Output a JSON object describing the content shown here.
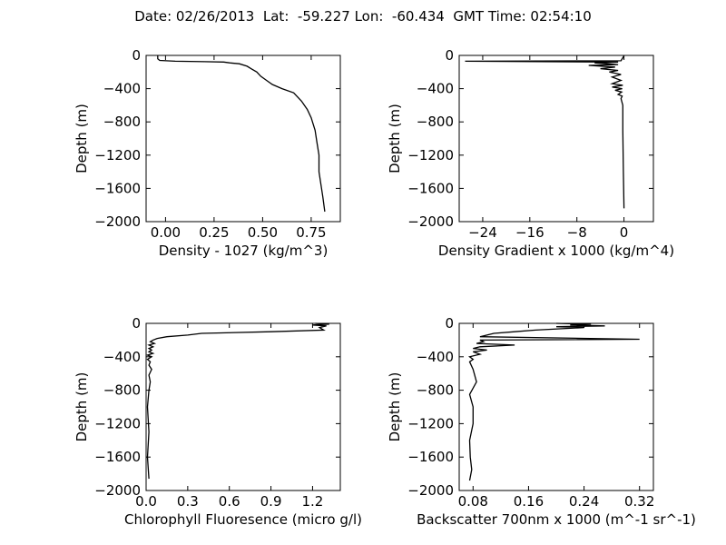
{
  "figure": {
    "suptitle": "Date: 02/26/2013  Lat:  -59.227 Lon:  -60.434  GMT Time: 02:54:10"
  },
  "chart_data": [
    {
      "type": "line",
      "xlabel": "Density - 1027 (kg/m^3)",
      "ylabel": "Depth (m)",
      "xlim": [
        -0.1,
        0.9
      ],
      "ylim": [
        -2000,
        0
      ],
      "xticks": [
        0.0,
        0.25,
        0.5,
        0.75
      ],
      "xtick_labels": [
        "0.00",
        "0.25",
        "0.50",
        "0.75"
      ],
      "yticks": [
        0,
        -400,
        -800,
        -1200,
        -1600,
        -2000
      ],
      "ytick_labels": [
        "0",
        "−400",
        "−800",
        "−1200",
        "−1600",
        "−2000"
      ],
      "series": [
        {
          "x": [
            -0.04,
            -0.04,
            -0.03,
            0.05,
            0.2,
            0.3,
            0.33,
            0.38,
            0.42,
            0.44,
            0.47,
            0.49,
            0.52,
            0.55,
            0.6,
            0.66,
            0.7,
            0.73,
            0.75,
            0.77,
            0.78,
            0.79,
            0.79,
            0.8,
            0.81,
            0.82
          ],
          "y": [
            -5,
            -40,
            -60,
            -70,
            -75,
            -80,
            -90,
            -100,
            -130,
            -160,
            -200,
            -250,
            -300,
            -350,
            -400,
            -450,
            -550,
            -650,
            -750,
            -900,
            -1050,
            -1200,
            -1400,
            -1550,
            -1700,
            -1880
          ]
        }
      ]
    },
    {
      "type": "line",
      "xlabel": "Density Gradient x 1000 (kg/m^4)",
      "ylabel": "Depth (m)",
      "xlim": [
        -28,
        5
      ],
      "ylim": [
        -2000,
        0
      ],
      "xticks": [
        -24,
        -16,
        -8,
        0
      ],
      "xtick_labels": [
        "−24",
        "−16",
        "−8",
        "0"
      ],
      "yticks": [
        0,
        -400,
        -800,
        -1200,
        -1600,
        -2000
      ],
      "ytick_labels": [
        "0",
        "−400",
        "−800",
        "−1200",
        "−1600",
        "−2000"
      ],
      "series": [
        {
          "x": [
            0,
            -0.5,
            -27,
            -1,
            -5,
            -1,
            -6,
            -1.5,
            -4,
            -1,
            -2.5,
            -0.5,
            -2,
            -0.5,
            -2,
            -0.2,
            -2,
            -0.3,
            -1.5,
            -0.4,
            -1,
            -0.3,
            -0.5,
            -0.2,
            -0.2,
            -0.1,
            0
          ],
          "y": [
            -5,
            -65,
            -70,
            -80,
            -90,
            -110,
            -120,
            -140,
            -160,
            -180,
            -200,
            -230,
            -260,
            -300,
            -340,
            -360,
            -380,
            -400,
            -420,
            -440,
            -470,
            -490,
            -520,
            -600,
            -900,
            -1400,
            -1840
          ]
        }
      ]
    },
    {
      "type": "line",
      "xlabel": "Chlorophyll Fluoresence (micro g/l)",
      "ylabel": "Depth (m)",
      "xlim": [
        0,
        1.4
      ],
      "ylim": [
        -2000,
        0
      ],
      "xticks": [
        0.0,
        0.3,
        0.6,
        0.9,
        1.2
      ],
      "xtick_labels": [
        "0.0",
        "0.3",
        "0.6",
        "0.9",
        "1.2"
      ],
      "yticks": [
        0,
        -400,
        -800,
        -1200,
        -1600,
        -2000
      ],
      "ytick_labels": [
        "0",
        "−400",
        "−800",
        "−1200",
        "−1600",
        "−2000"
      ],
      "series": [
        {
          "x": [
            1.22,
            1.32,
            1.2,
            1.3,
            1.25,
            1.28,
            0.9,
            0.4,
            0.3,
            0.15,
            0.08,
            0.05,
            0.03,
            0.06,
            0.02,
            0.05,
            0.02,
            0.04,
            0.02,
            0.05,
            0.01,
            0.04,
            0.01,
            0.03,
            0.02,
            0.04,
            0.02,
            0.03,
            0.02,
            0.01,
            0.02,
            0.01,
            0.02
          ],
          "y": [
            0,
            -10,
            -20,
            -30,
            -50,
            -80,
            -100,
            -120,
            -140,
            -160,
            -180,
            -200,
            -220,
            -240,
            -260,
            -280,
            -300,
            -320,
            -340,
            -360,
            -380,
            -400,
            -430,
            -460,
            -500,
            -550,
            -620,
            -700,
            -800,
            -1000,
            -1300,
            -1600,
            -1860
          ]
        }
      ]
    },
    {
      "type": "line",
      "xlabel": "Backscatter 700nm x 1000 (m^-1 sr^-1)",
      "ylabel": "Depth (m)",
      "xlim": [
        0.06,
        0.34
      ],
      "ylim": [
        -2000,
        0
      ],
      "xticks": [
        0.08,
        0.16,
        0.24,
        0.32
      ],
      "xtick_labels": [
        "0.08",
        "0.16",
        "0.24",
        "0.32"
      ],
      "yticks": [
        0,
        -400,
        -800,
        -1200,
        -1600,
        -2000
      ],
      "ytick_labels": [
        "0",
        "−400",
        "−800",
        "−1200",
        "−1600",
        "−2000"
      ],
      "series": [
        {
          "x": [
            0.2,
            0.25,
            0.22,
            0.27,
            0.2,
            0.24,
            0.17,
            0.14,
            0.11,
            0.1,
            0.09,
            0.32,
            0.09,
            0.095,
            0.085,
            0.14,
            0.09,
            0.08,
            0.1,
            0.08,
            0.09,
            0.075,
            0.08,
            0.075,
            0.08,
            0.085,
            0.075,
            0.08,
            0.08,
            0.075,
            0.076,
            0.078,
            0.075
          ],
          "y": [
            0,
            -10,
            -20,
            -30,
            -40,
            -50,
            -80,
            -100,
            -120,
            -140,
            -160,
            -190,
            -200,
            -220,
            -240,
            -260,
            -280,
            -300,
            -320,
            -340,
            -370,
            -400,
            -430,
            -460,
            -550,
            -700,
            -850,
            -1000,
            -1200,
            -1400,
            -1600,
            -1750,
            -1880
          ]
        }
      ]
    }
  ]
}
